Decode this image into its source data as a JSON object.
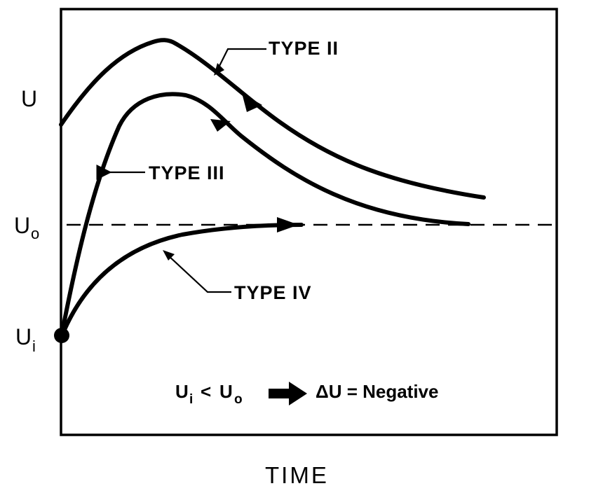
{
  "axes": {
    "y_label": "U",
    "x_label": "TIME",
    "u_initial_main": "U",
    "u_initial_sub": "i",
    "u_final_main": "U",
    "u_final_sub": "o"
  },
  "curves": [
    {
      "id": "type-2",
      "label": "TYPE II"
    },
    {
      "id": "type-3",
      "label": "TYPE III"
    },
    {
      "id": "type-4",
      "label": "TYPE IV"
    }
  ],
  "note": {
    "left_main": "U",
    "left_sub": "i",
    "relation": "<",
    "right_main": "U",
    "right_sub": "o",
    "result": "ΔU = Negative"
  }
}
